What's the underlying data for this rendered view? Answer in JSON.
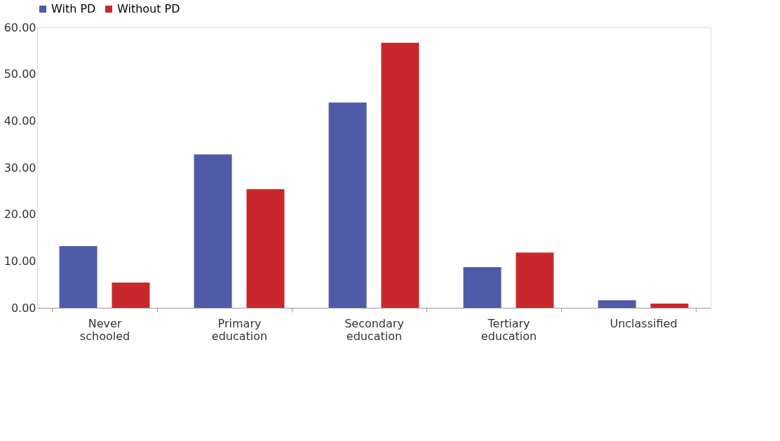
{
  "chart_data": {
    "type": "bar",
    "categories": [
      "Never schooled",
      "Primary education",
      "Secondary education",
      "Tertiary education",
      "Unclassified"
    ],
    "series": [
      {
        "name": "With PD",
        "color": "#4f5ba6",
        "values": [
          13.2,
          32.8,
          43.9,
          8.7,
          1.6
        ]
      },
      {
        "name": "Without PD",
        "color": "#c8282c",
        "values": [
          5.4,
          25.4,
          56.7,
          11.8,
          0.9
        ]
      }
    ],
    "ylim": [
      0,
      60
    ],
    "yticks": [
      {
        "value": 0,
        "label": "0.00"
      },
      {
        "value": 10,
        "label": "10.00"
      },
      {
        "value": 20,
        "label": "20.00"
      },
      {
        "value": 30,
        "label": "30.00"
      },
      {
        "value": 40,
        "label": "40.00"
      },
      {
        "value": 50,
        "label": "50.00"
      },
      {
        "value": 60,
        "label": "60.00"
      }
    ],
    "grid": false,
    "legend": "top"
  }
}
